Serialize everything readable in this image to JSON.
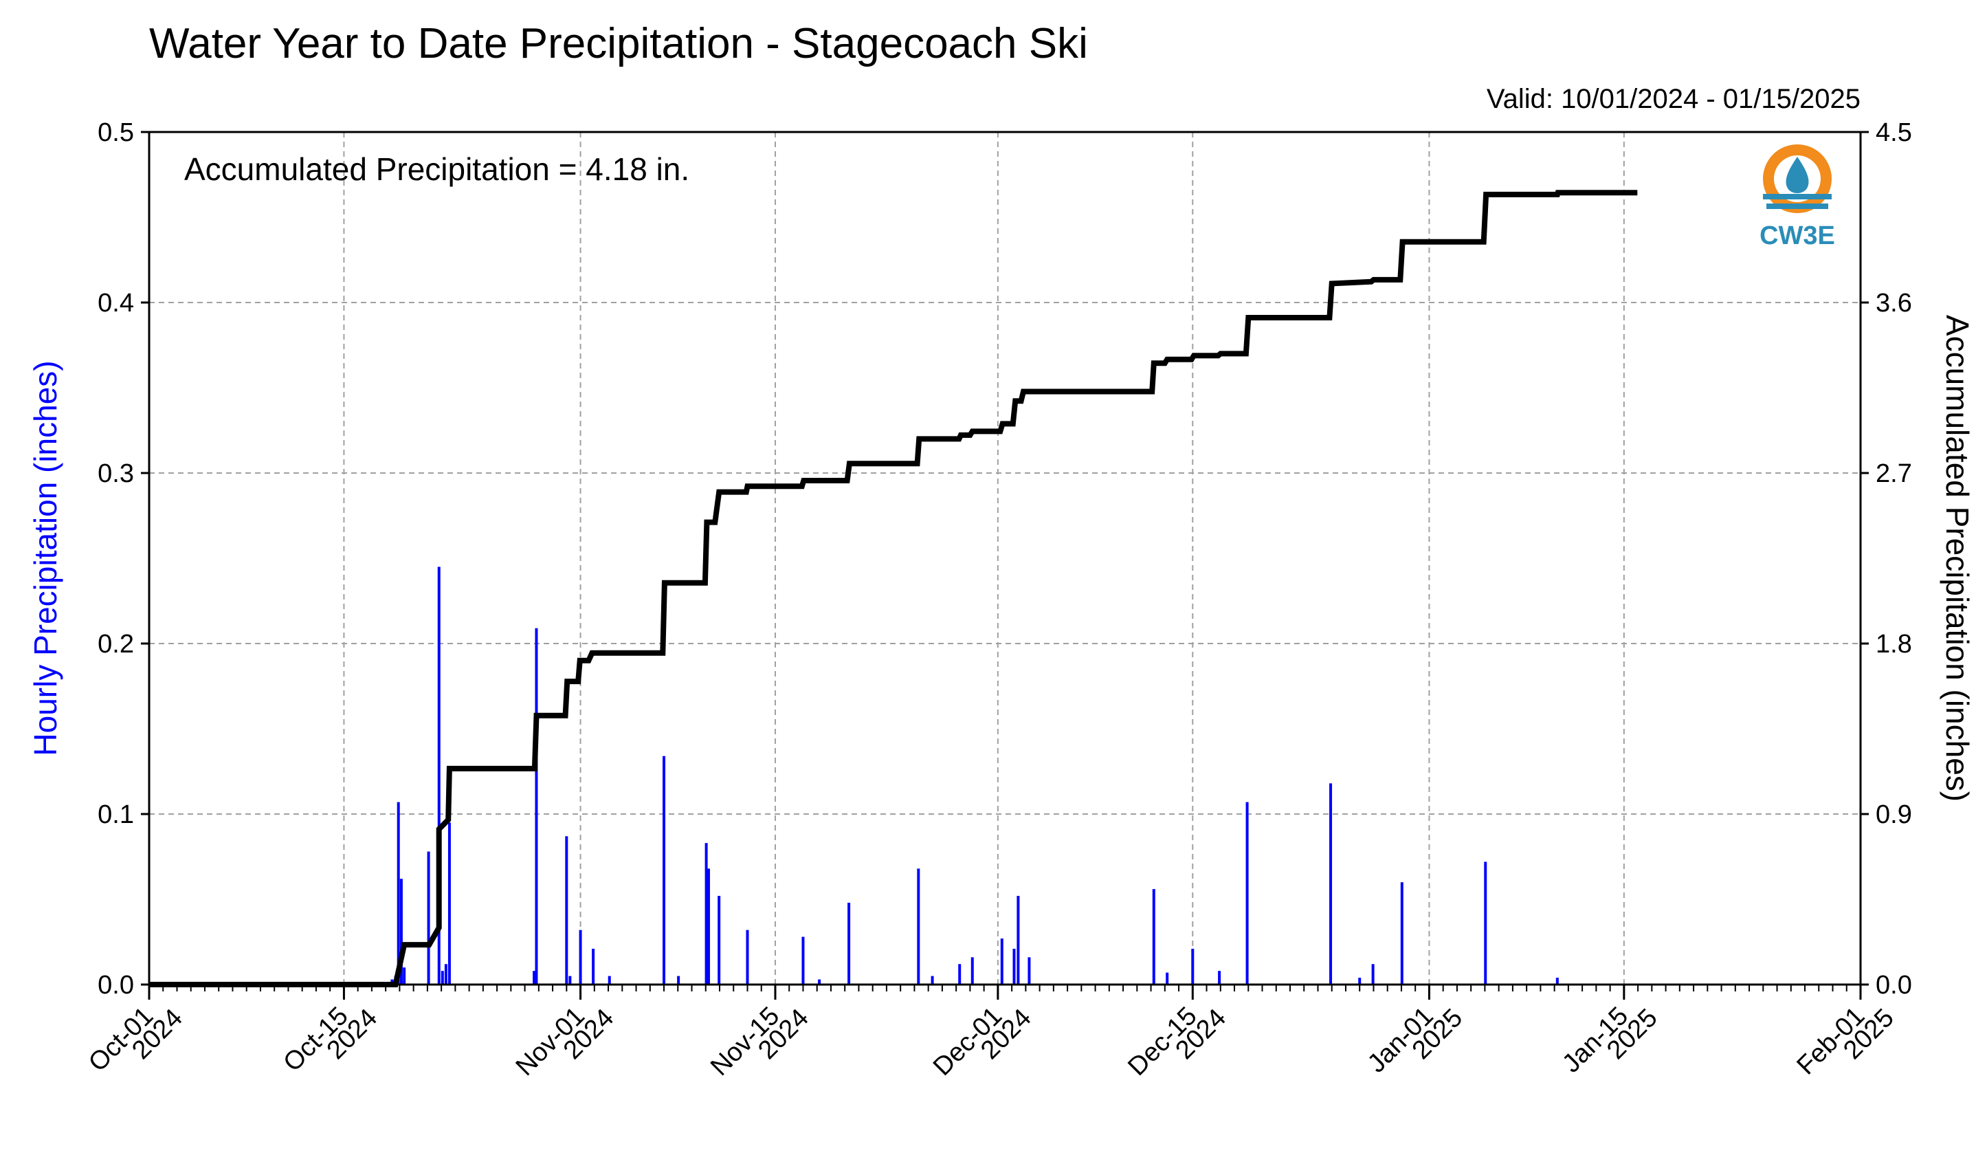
{
  "title": "Water Year to Date Precipitation - Stagecoach Ski",
  "valid": "Valid: 10/01/2024 - 01/15/2025",
  "annotation": "Accumulated Precipitation = 4.18 in.",
  "logo": {
    "text": "CW3E",
    "icon": "water-drop-sun-icon",
    "colors": [
      "#f28c1c",
      "#2a8db8"
    ]
  },
  "chart_data": {
    "type": "bar",
    "title": "Water Year to Date Precipitation - Stagecoach Ski",
    "subtitle": "Valid: 10/01/2024 - 01/15/2025",
    "ylabel_left": "Hourly Precipitation (inches)",
    "ylabel_right": "Accumulated Precipitation (inches)",
    "ylim_left": [
      0,
      0.5
    ],
    "ylim_right": [
      0,
      4.5
    ],
    "yticks_left": [
      "0.0",
      "0.1",
      "0.2",
      "0.3",
      "0.4",
      "0.5"
    ],
    "yticks_right": [
      "0.0",
      "0.9",
      "1.8",
      "2.7",
      "3.6",
      "4.5"
    ],
    "xlim": [
      "2024-10-01",
      "2025-02-01"
    ],
    "xticks": [
      {
        "date": "2024-10-01",
        "line1": "Oct-01",
        "line2": "2024"
      },
      {
        "date": "2024-10-15",
        "line1": "Oct-15",
        "line2": "2024"
      },
      {
        "date": "2024-11-01",
        "line1": "Nov-01",
        "line2": "2024"
      },
      {
        "date": "2024-11-15",
        "line1": "Nov-15",
        "line2": "2024"
      },
      {
        "date": "2024-12-01",
        "line1": "Dec-01",
        "line2": "2024"
      },
      {
        "date": "2024-12-15",
        "line1": "Dec-15",
        "line2": "2024"
      },
      {
        "date": "2025-01-01",
        "line1": "Jan-01",
        "line2": "2025"
      },
      {
        "date": "2025-01-15",
        "line1": "Jan-15",
        "line2": "2025"
      },
      {
        "date": "2025-02-01",
        "line1": "Feb-01",
        "line2": "2025"
      }
    ],
    "grid": true,
    "colors": {
      "hourly": "#0000ff",
      "accumulated": "#000000",
      "grid": "#a0a0a0",
      "ylabel_left": "#0000ff"
    },
    "hourly_series": {
      "name": "Hourly Precipitation",
      "points": [
        [
          "2024-10-18T11:00",
          0.003
        ],
        [
          "2024-10-18T17:00",
          0.005
        ],
        [
          "2024-10-18T22:00",
          0.107
        ],
        [
          "2024-10-19T03:00",
          0.062
        ],
        [
          "2024-10-19T08:00",
          0.01
        ],
        [
          "2024-10-21T02:00",
          0.078
        ],
        [
          "2024-10-21T20:00",
          0.245
        ],
        [
          "2024-10-22T02:00",
          0.008
        ],
        [
          "2024-10-22T08:00",
          0.012
        ],
        [
          "2024-10-22T14:00",
          0.095
        ],
        [
          "2024-10-28T16:00",
          0.008
        ],
        [
          "2024-10-28T20:00",
          0.209
        ],
        [
          "2024-10-31T00:00",
          0.087
        ],
        [
          "2024-10-31T06:00",
          0.005
        ],
        [
          "2024-11-01T00:00",
          0.032
        ],
        [
          "2024-11-01T22:00",
          0.021
        ],
        [
          "2024-11-03T02:00",
          0.005
        ],
        [
          "2024-11-07T00:00",
          0.134
        ],
        [
          "2024-11-08T01:00",
          0.005
        ],
        [
          "2024-11-10T01:00",
          0.083
        ],
        [
          "2024-11-10T05:00",
          0.068
        ],
        [
          "2024-11-10T23:00",
          0.052
        ],
        [
          "2024-11-13T00:00",
          0.032
        ],
        [
          "2024-11-17T00:00",
          0.028
        ],
        [
          "2024-11-18T04:00",
          0.003
        ],
        [
          "2024-11-20T07:00",
          0.048
        ],
        [
          "2024-11-25T07:00",
          0.068
        ],
        [
          "2024-11-26T07:00",
          0.005
        ],
        [
          "2024-11-28T06:00",
          0.012
        ],
        [
          "2024-11-29T04:00",
          0.016
        ],
        [
          "2024-12-01T07:00",
          0.027
        ],
        [
          "2024-12-02T04:00",
          0.021
        ],
        [
          "2024-12-02T11:00",
          0.052
        ],
        [
          "2024-12-03T06:00",
          0.016
        ],
        [
          "2024-12-12T05:00",
          0.056
        ],
        [
          "2024-12-13T04:00",
          0.007
        ],
        [
          "2024-12-15T00:00",
          0.021
        ],
        [
          "2024-12-16T22:00",
          0.008
        ],
        [
          "2024-12-18T22:00",
          0.107
        ],
        [
          "2024-12-24T22:00",
          0.118
        ],
        [
          "2024-12-27T00:00",
          0.004
        ],
        [
          "2024-12-27T23:00",
          0.012
        ],
        [
          "2024-12-30T01:00",
          0.06
        ],
        [
          "2025-01-05T01:00",
          0.072
        ],
        [
          "2025-01-10T05:00",
          0.004
        ]
      ]
    },
    "accumulated_series": {
      "name": "Accumulated Precipitation",
      "points": [
        [
          "2024-10-01T00:00",
          0.0
        ],
        [
          "2024-10-18T17:00",
          0.0
        ],
        [
          "2024-10-19T08:00",
          0.21
        ],
        [
          "2024-10-21T03:00",
          0.21
        ],
        [
          "2024-10-21T20:00",
          0.3
        ],
        [
          "2024-10-21T20:00",
          0.82
        ],
        [
          "2024-10-22T12:00",
          0.87
        ],
        [
          "2024-10-22T14:00",
          1.14
        ],
        [
          "2024-10-28T17:00",
          1.14
        ],
        [
          "2024-10-28T20:00",
          1.42
        ],
        [
          "2024-10-30T22:00",
          1.42
        ],
        [
          "2024-10-31T01:00",
          1.6
        ],
        [
          "2024-10-31T20:00",
          1.6
        ],
        [
          "2024-10-31T23:00",
          1.71
        ],
        [
          "2024-11-01T14:00",
          1.71
        ],
        [
          "2024-11-01T20:00",
          1.75
        ],
        [
          "2024-11-06T22:00",
          1.75
        ],
        [
          "2024-11-07T01:00",
          2.12
        ],
        [
          "2024-11-09T23:00",
          2.12
        ],
        [
          "2024-11-10T02:00",
          2.44
        ],
        [
          "2024-11-10T16:00",
          2.44
        ],
        [
          "2024-11-10T23:00",
          2.6
        ],
        [
          "2024-11-12T22:00",
          2.6
        ],
        [
          "2024-11-13T00:00",
          2.63
        ],
        [
          "2024-11-16T22:00",
          2.63
        ],
        [
          "2024-11-17T01:00",
          2.66
        ],
        [
          "2024-11-20T04:00",
          2.66
        ],
        [
          "2024-11-20T08:00",
          2.75
        ],
        [
          "2024-11-25T05:00",
          2.75
        ],
        [
          "2024-11-25T08:00",
          2.88
        ],
        [
          "2024-11-28T05:00",
          2.88
        ],
        [
          "2024-11-28T08:00",
          2.9
        ],
        [
          "2024-11-29T00:00",
          2.9
        ],
        [
          "2024-11-29T04:00",
          2.92
        ],
        [
          "2024-12-01T04:00",
          2.92
        ],
        [
          "2024-12-01T08:00",
          2.96
        ],
        [
          "2024-12-02T02:00",
          2.96
        ],
        [
          "2024-12-02T06:00",
          3.08
        ],
        [
          "2024-12-02T16:00",
          3.08
        ],
        [
          "2024-12-02T20:00",
          3.13
        ],
        [
          "2024-12-12T02:00",
          3.13
        ],
        [
          "2024-12-12T05:00",
          3.28
        ],
        [
          "2024-12-13T00:00",
          3.28
        ],
        [
          "2024-12-13T04:00",
          3.3
        ],
        [
          "2024-12-14T22:00",
          3.3
        ],
        [
          "2024-12-15T02:00",
          3.32
        ],
        [
          "2024-12-16T20:00",
          3.32
        ],
        [
          "2024-12-17T00:00",
          3.33
        ],
        [
          "2024-12-18T20:00",
          3.33
        ],
        [
          "2024-12-19T00:00",
          3.52
        ],
        [
          "2024-12-24T20:00",
          3.52
        ],
        [
          "2024-12-25T00:00",
          3.7
        ],
        [
          "2024-12-27T20:00",
          3.71
        ],
        [
          "2024-12-28T00:00",
          3.72
        ],
        [
          "2024-12-29T22:00",
          3.72
        ],
        [
          "2024-12-30T02:00",
          3.92
        ],
        [
          "2025-01-04T22:00",
          3.92
        ],
        [
          "2025-01-05T02:00",
          4.17
        ],
        [
          "2025-01-10T05:00",
          4.17
        ],
        [
          "2025-01-10T06:00",
          4.18
        ],
        [
          "2025-01-15T23:00",
          4.18
        ]
      ]
    }
  }
}
